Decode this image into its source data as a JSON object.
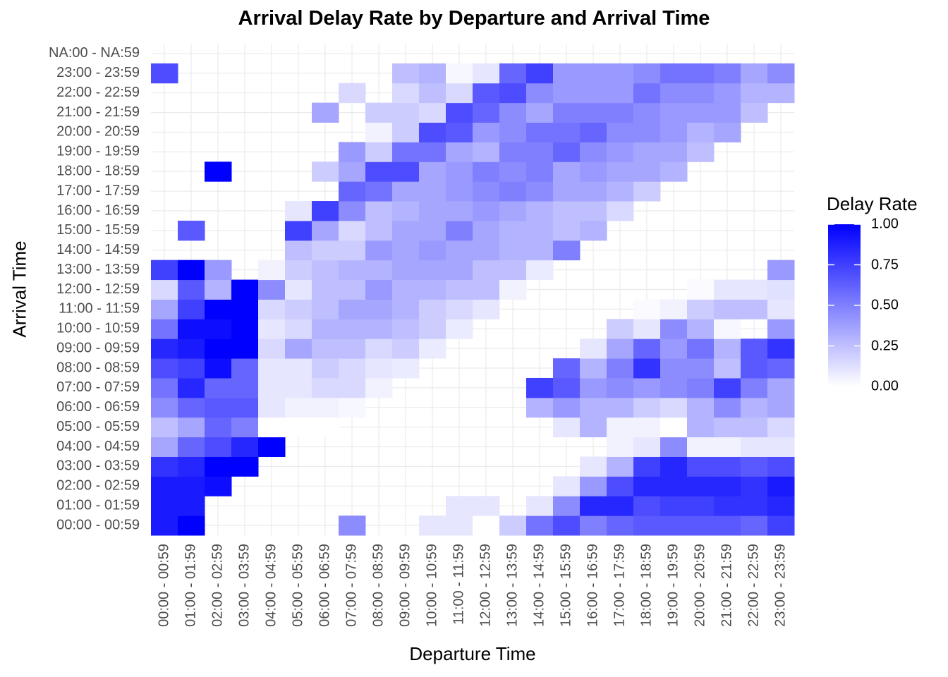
{
  "chart_data": {
    "type": "heatmap",
    "title": "Arrival Delay Rate by Departure and Arrival Time",
    "xlabel": "Departure Time",
    "ylabel": "Arrival Time",
    "x_categories": [
      "00:00 - 00:59",
      "01:00 - 01:59",
      "02:00 - 02:59",
      "03:00 - 03:59",
      "04:00 - 04:59",
      "05:00 - 05:59",
      "06:00 - 06:59",
      "07:00 - 07:59",
      "08:00 - 08:59",
      "09:00 - 09:59",
      "10:00 - 10:59",
      "11:00 - 11:59",
      "12:00 - 12:59",
      "13:00 - 13:59",
      "14:00 - 14:59",
      "15:00 - 15:59",
      "16:00 - 16:59",
      "17:00 - 17:59",
      "18:00 - 18:59",
      "19:00 - 19:59",
      "20:00 - 20:59",
      "21:00 - 21:59",
      "22:00 - 22:59",
      "23:00 - 23:59"
    ],
    "y_categories": [
      "00:00 - 00:59",
      "01:00 - 01:59",
      "02:00 - 02:59",
      "03:00 - 03:59",
      "04:00 - 04:59",
      "05:00 - 05:59",
      "06:00 - 06:59",
      "07:00 - 07:59",
      "08:00 - 08:59",
      "09:00 - 09:59",
      "10:00 - 10:59",
      "11:00 - 11:59",
      "12:00 - 12:59",
      "13:00 - 13:59",
      "14:00 - 14:59",
      "15:00 - 15:59",
      "16:00 - 16:59",
      "17:00 - 17:59",
      "18:00 - 18:59",
      "19:00 - 19:59",
      "20:00 - 20:59",
      "21:00 - 21:59",
      "22:00 - 22:59",
      "23:00 - 23:59",
      "NA:00 - NA:59"
    ],
    "values": [
      [
        0.9,
        1.0,
        null,
        null,
        null,
        null,
        null,
        0.45,
        null,
        null,
        0.1,
        0.1,
        0.0,
        0.2,
        0.55,
        0.7,
        0.5,
        0.6,
        0.65,
        0.65,
        0.65,
        0.65,
        0.6,
        0.75
      ],
      [
        0.9,
        0.9,
        null,
        null,
        null,
        null,
        null,
        null,
        null,
        null,
        null,
        0.1,
        0.1,
        null,
        0.1,
        0.45,
        0.85,
        0.85,
        0.7,
        0.75,
        0.75,
        0.8,
        0.8,
        0.85
      ],
      [
        0.9,
        0.9,
        0.95,
        null,
        null,
        null,
        null,
        null,
        null,
        null,
        null,
        null,
        null,
        null,
        null,
        0.1,
        0.4,
        0.7,
        0.85,
        0.85,
        0.85,
        0.85,
        0.8,
        0.9
      ],
      [
        0.8,
        0.85,
        1.0,
        1.0,
        null,
        null,
        null,
        null,
        null,
        null,
        null,
        null,
        null,
        null,
        null,
        null,
        0.1,
        0.3,
        0.75,
        0.85,
        0.7,
        0.7,
        0.65,
        0.7
      ],
      [
        0.35,
        0.6,
        0.7,
        0.85,
        1.0,
        null,
        null,
        null,
        null,
        null,
        null,
        null,
        null,
        null,
        null,
        null,
        null,
        0.05,
        0.1,
        0.45,
        0.05,
        0.05,
        0.1,
        0.1
      ],
      [
        0.25,
        0.35,
        0.6,
        0.5,
        0.0,
        0.0,
        0.0,
        null,
        null,
        null,
        null,
        null,
        null,
        null,
        null,
        0.1,
        0.3,
        0.05,
        0.05,
        0.0,
        0.3,
        0.25,
        0.25,
        0.15
      ],
      [
        0.45,
        0.6,
        0.65,
        0.65,
        0.1,
        0.05,
        0.05,
        0.03,
        null,
        null,
        null,
        null,
        null,
        null,
        0.3,
        0.4,
        0.3,
        0.3,
        0.2,
        0.15,
        0.3,
        0.45,
        0.3,
        0.35
      ],
      [
        0.55,
        0.85,
        0.6,
        0.6,
        0.1,
        0.1,
        0.15,
        0.15,
        0.05,
        null,
        null,
        null,
        null,
        null,
        0.75,
        0.65,
        0.4,
        0.45,
        0.4,
        0.45,
        0.5,
        0.75,
        0.5,
        0.35
      ],
      [
        0.7,
        0.75,
        0.95,
        0.6,
        0.1,
        0.1,
        0.2,
        0.15,
        0.1,
        0.08,
        null,
        null,
        null,
        null,
        null,
        0.6,
        0.3,
        0.5,
        0.8,
        0.45,
        0.45,
        0.25,
        0.65,
        0.6
      ],
      [
        0.85,
        0.9,
        1.0,
        1.0,
        0.15,
        0.35,
        0.25,
        0.25,
        0.15,
        0.2,
        0.08,
        null,
        null,
        null,
        null,
        null,
        0.1,
        0.35,
        0.6,
        0.4,
        0.55,
        0.3,
        0.65,
        0.8
      ],
      [
        0.55,
        0.95,
        0.95,
        1.0,
        0.1,
        0.15,
        0.3,
        0.3,
        0.3,
        0.25,
        0.2,
        0.08,
        null,
        null,
        null,
        null,
        null,
        0.2,
        0.1,
        0.45,
        0.3,
        0.03,
        null,
        0.4
      ],
      [
        0.35,
        0.75,
        1.0,
        1.0,
        0.15,
        0.2,
        0.25,
        0.35,
        0.35,
        0.3,
        0.2,
        0.15,
        0.1,
        null,
        null,
        null,
        null,
        null,
        0.02,
        0.05,
        0.2,
        0.25,
        0.25,
        0.1
      ],
      [
        0.15,
        0.65,
        0.3,
        1.0,
        0.45,
        0.1,
        0.25,
        0.25,
        0.4,
        0.3,
        0.3,
        0.25,
        0.25,
        0.05,
        null,
        null,
        null,
        null,
        null,
        null,
        0.02,
        0.1,
        0.1,
        0.12
      ],
      [
        0.75,
        1.0,
        0.4,
        null,
        0.05,
        0.2,
        0.25,
        0.3,
        0.3,
        0.35,
        0.35,
        0.35,
        0.25,
        0.25,
        0.08,
        null,
        null,
        null,
        null,
        null,
        null,
        null,
        null,
        0.4
      ],
      [
        null,
        null,
        null,
        null,
        null,
        0.25,
        0.2,
        0.2,
        0.4,
        0.35,
        0.4,
        0.35,
        0.35,
        0.3,
        0.3,
        0.5,
        null,
        null,
        null,
        null,
        null,
        null,
        null,
        null
      ],
      [
        null,
        0.65,
        null,
        null,
        null,
        0.75,
        0.35,
        0.15,
        0.25,
        0.35,
        0.35,
        0.5,
        0.35,
        0.3,
        0.3,
        0.25,
        0.3,
        null,
        null,
        null,
        null,
        null,
        null,
        null
      ],
      [
        null,
        null,
        null,
        null,
        null,
        0.1,
        0.75,
        0.45,
        0.25,
        0.3,
        0.35,
        0.35,
        0.4,
        0.35,
        0.3,
        0.25,
        0.25,
        0.15,
        null,
        null,
        null,
        null,
        null,
        null
      ],
      [
        null,
        null,
        null,
        null,
        null,
        null,
        null,
        0.6,
        0.55,
        0.35,
        0.35,
        0.4,
        0.45,
        0.5,
        0.45,
        0.35,
        0.35,
        0.3,
        0.2,
        null,
        null,
        null,
        null,
        null
      ],
      [
        null,
        null,
        1.0,
        null,
        null,
        null,
        0.2,
        0.35,
        0.7,
        0.7,
        0.35,
        0.4,
        0.5,
        0.45,
        0.5,
        0.35,
        0.4,
        0.35,
        0.35,
        0.3,
        null,
        null,
        null,
        null
      ],
      [
        null,
        null,
        null,
        null,
        null,
        null,
        null,
        0.4,
        0.2,
        0.55,
        0.55,
        0.35,
        0.3,
        0.5,
        0.5,
        0.6,
        0.45,
        0.4,
        0.35,
        0.35,
        0.25,
        null,
        null,
        null
      ],
      [
        null,
        null,
        null,
        null,
        null,
        null,
        null,
        null,
        0.05,
        0.2,
        0.7,
        0.65,
        0.4,
        0.45,
        0.55,
        0.55,
        0.6,
        0.45,
        0.45,
        0.4,
        0.3,
        0.35,
        null,
        null
      ],
      [
        null,
        null,
        null,
        null,
        null,
        null,
        0.35,
        null,
        0.2,
        0.2,
        0.15,
        0.7,
        0.6,
        0.45,
        0.35,
        0.5,
        0.5,
        0.5,
        0.45,
        0.4,
        0.4,
        0.4,
        0.25,
        null
      ],
      [
        null,
        null,
        null,
        null,
        null,
        null,
        null,
        0.15,
        null,
        0.15,
        0.25,
        0.15,
        0.65,
        0.7,
        0.45,
        0.4,
        0.4,
        0.4,
        0.55,
        0.45,
        0.45,
        0.4,
        0.3,
        0.3
      ],
      [
        0.7,
        null,
        null,
        null,
        null,
        null,
        null,
        null,
        null,
        0.25,
        0.3,
        0.03,
        0.1,
        0.6,
        0.75,
        0.4,
        0.4,
        0.4,
        0.45,
        0.55,
        0.55,
        0.5,
        0.35,
        0.45
      ],
      [
        null,
        null,
        null,
        null,
        null,
        null,
        null,
        null,
        null,
        null,
        null,
        null,
        null,
        null,
        null,
        null,
        null,
        null,
        null,
        null,
        null,
        null,
        null,
        null
      ]
    ],
    "color_scale": {
      "low": "#FFFFFF",
      "high": "#0000FF",
      "min": 0,
      "max": 1
    },
    "legend": {
      "title": "Delay Rate",
      "labels": [
        "1.00",
        "0.75",
        "0.50",
        "0.25",
        "0.00"
      ],
      "values": [
        1.0,
        0.75,
        0.5,
        0.25,
        0.0
      ],
      "placement": "right"
    },
    "grid": true
  }
}
